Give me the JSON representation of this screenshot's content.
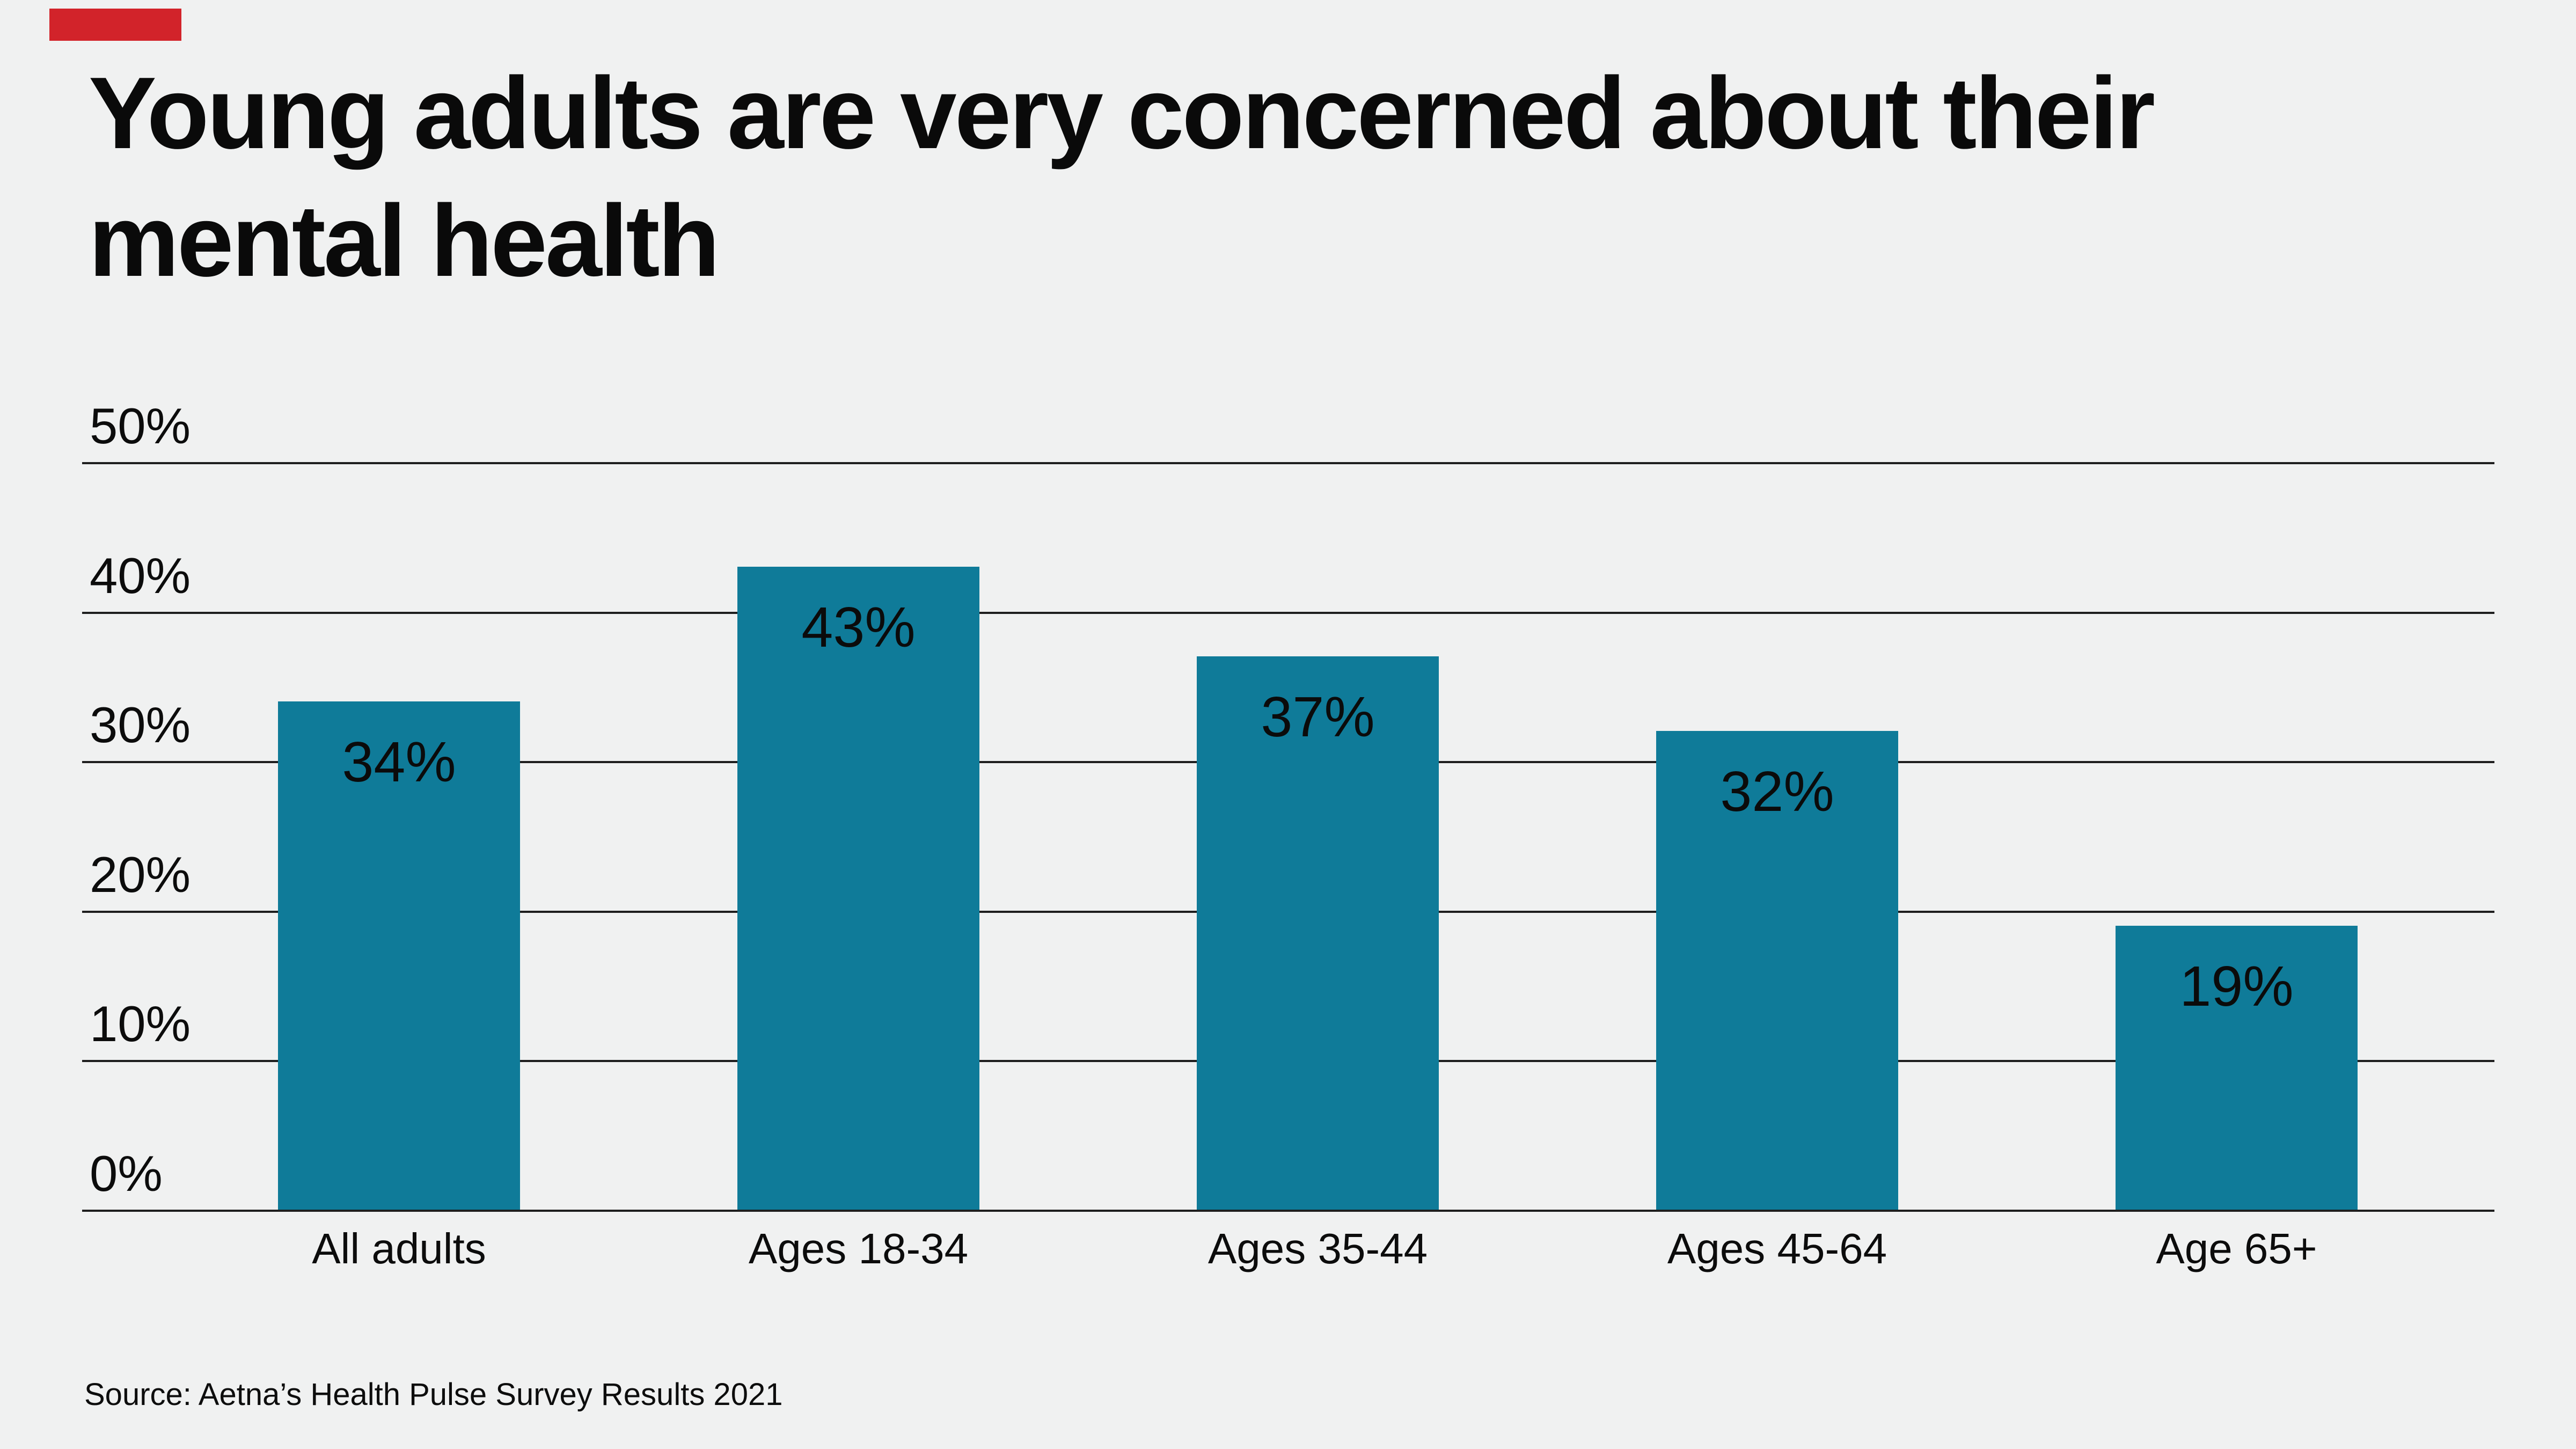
{
  "accent": {
    "color": "#d2232a"
  },
  "title": {
    "lines": [
      "Young adults are very concerned about their",
      "mental health"
    ]
  },
  "chart_data": {
    "type": "bar",
    "title": "Young adults are very concerned about their mental health",
    "categories": [
      "All adults",
      "Ages 18-34",
      "Ages 35-44",
      "Ages 45-64",
      "Age 65+"
    ],
    "values": [
      34,
      43,
      37,
      32,
      19
    ],
    "value_labels": [
      "34%",
      "43%",
      "37%",
      "32%",
      "19%"
    ],
    "yticks": [
      {
        "label": "50%",
        "value": 50
      },
      {
        "label": "40%",
        "value": 40
      },
      {
        "label": "30%",
        "value": 30
      },
      {
        "label": "20%",
        "value": 20
      },
      {
        "label": "10%",
        "value": 10
      },
      {
        "label": "0%",
        "value": 0
      }
    ],
    "ylim": [
      0,
      50
    ],
    "xlabel": "",
    "ylabel": "",
    "grid": "horizontal",
    "legend": "none",
    "bar_color": "#0f7b99",
    "gridline_color": "#1e1e1e",
    "label_color": "#0b0b0b",
    "background_color": "#f0f1f1",
    "source": "Source: Aetna’s Health Pulse Survey Results 2021"
  }
}
